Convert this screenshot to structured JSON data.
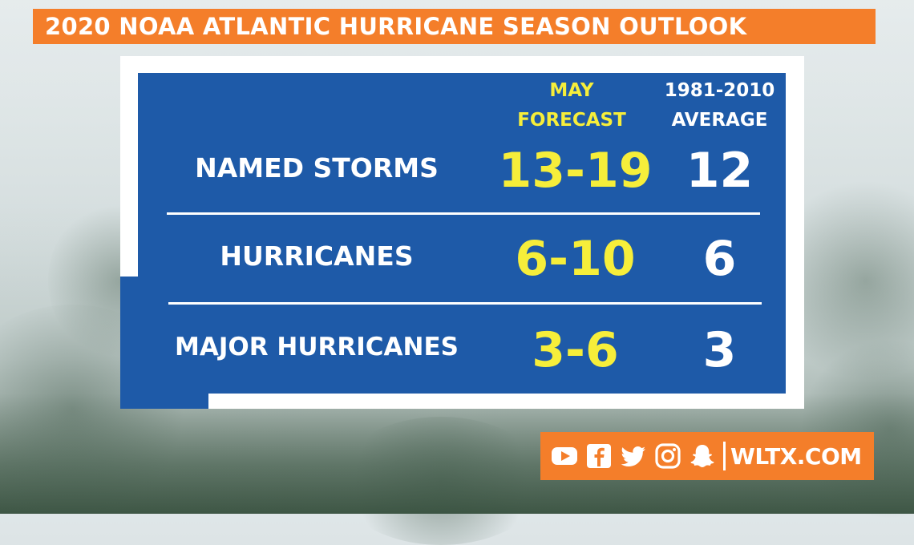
{
  "title": "2020 NOAA ATLANTIC HURRICANE SEASON OUTLOOK",
  "columns": {
    "forecast_line1": "MAY",
    "forecast_line2": "FORECAST",
    "average_line1": "1981-2010",
    "average_line2": "AVERAGE"
  },
  "rows": [
    {
      "label": "NAMED STORMS",
      "forecast": "13-19",
      "average": "12"
    },
    {
      "label": "HURRICANES",
      "forecast": "6-10",
      "average": "6"
    },
    {
      "label": "MAJOR HURRICANES",
      "forecast": "3-6",
      "average": "3"
    }
  ],
  "footer": {
    "icons": [
      "youtube-icon",
      "facebook-icon",
      "twitter-icon",
      "instagram-icon",
      "snapchat-icon"
    ],
    "site": "WLTX.COM"
  },
  "colors": {
    "accent_orange": "#f47e2a",
    "panel_blue": "#1e5aa8",
    "forecast_yellow": "#f6ee3a"
  }
}
